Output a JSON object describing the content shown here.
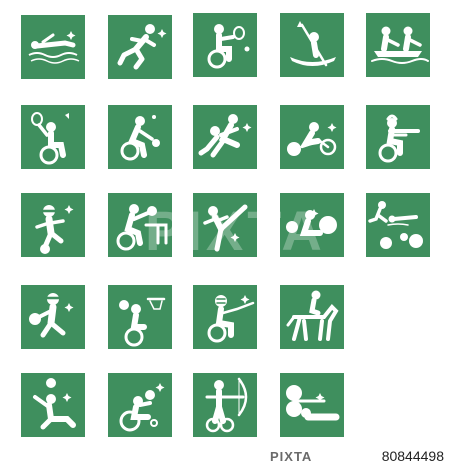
{
  "sheet": {
    "accent": "#3f8f5e",
    "icon_color": "#ffffff",
    "icons": [
      {
        "name": "swimming-icon"
      },
      {
        "name": "sprint-running-icon"
      },
      {
        "name": "wheelchair-tennis-icon"
      },
      {
        "name": "canoe-icon"
      },
      {
        "name": "rowing-icon"
      },
      {
        "name": "wheelchair-badminton-icon"
      },
      {
        "name": "wheelchair-table-tennis-icon"
      },
      {
        "name": "judo-icon"
      },
      {
        "name": "para-cycling-icon"
      },
      {
        "name": "wheelchair-shooting-icon"
      },
      {
        "name": "blind-football-icon"
      },
      {
        "name": "wheelchair-fencing-icon"
      },
      {
        "name": "taekwondo-icon"
      },
      {
        "name": "boccia-icon"
      },
      {
        "name": "triathlon-icon"
      },
      {
        "name": "goalball-icon"
      },
      {
        "name": "wheelchair-basketball-icon"
      },
      {
        "name": "wheelchair-fencing-mask-icon"
      },
      {
        "name": "equestrian-icon"
      },
      {
        "name": "sitting-volleyball-icon"
      },
      {
        "name": "wheelchair-rugby-icon"
      },
      {
        "name": "para-archery-icon"
      },
      {
        "name": "powerlifting-icon"
      }
    ]
  },
  "watermark": {
    "logo_text": "PIXTA"
  },
  "footer": {
    "logo_text": "PIXTA",
    "image_id": "80844498"
  }
}
